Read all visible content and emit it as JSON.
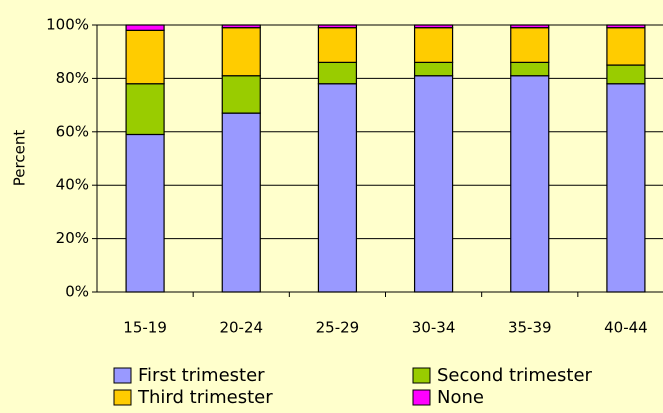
{
  "chart_data": {
    "type": "stacked-bar",
    "y_label": "Percent",
    "categories": [
      "15-19",
      "20-24",
      "25-29",
      "30-34",
      "35-39",
      "40-44"
    ],
    "series": [
      {
        "name": "First trimester",
        "color": "#9999ff",
        "values": [
          59,
          67,
          78,
          81,
          81,
          78
        ]
      },
      {
        "name": "Second trimester",
        "color": "#99cc00",
        "values": [
          19,
          14,
          8,
          5,
          5,
          7
        ]
      },
      {
        "name": "Third trimester",
        "color": "#ffcc00",
        "values": [
          20,
          18,
          13,
          13,
          13,
          14
        ]
      },
      {
        "name": "None",
        "color": "#ff00ff",
        "values": [
          2,
          1,
          1,
          1,
          1,
          1
        ]
      }
    ],
    "ylim": [
      0,
      100
    ],
    "yticks": [
      {
        "value": 0,
        "label": "0%"
      },
      {
        "value": 20,
        "label": "20%"
      },
      {
        "value": 40,
        "label": "40%"
      },
      {
        "value": 60,
        "label": "60%"
      },
      {
        "value": 80,
        "label": "80%"
      },
      {
        "value": 100,
        "label": "100%"
      }
    ],
    "grid": true
  }
}
